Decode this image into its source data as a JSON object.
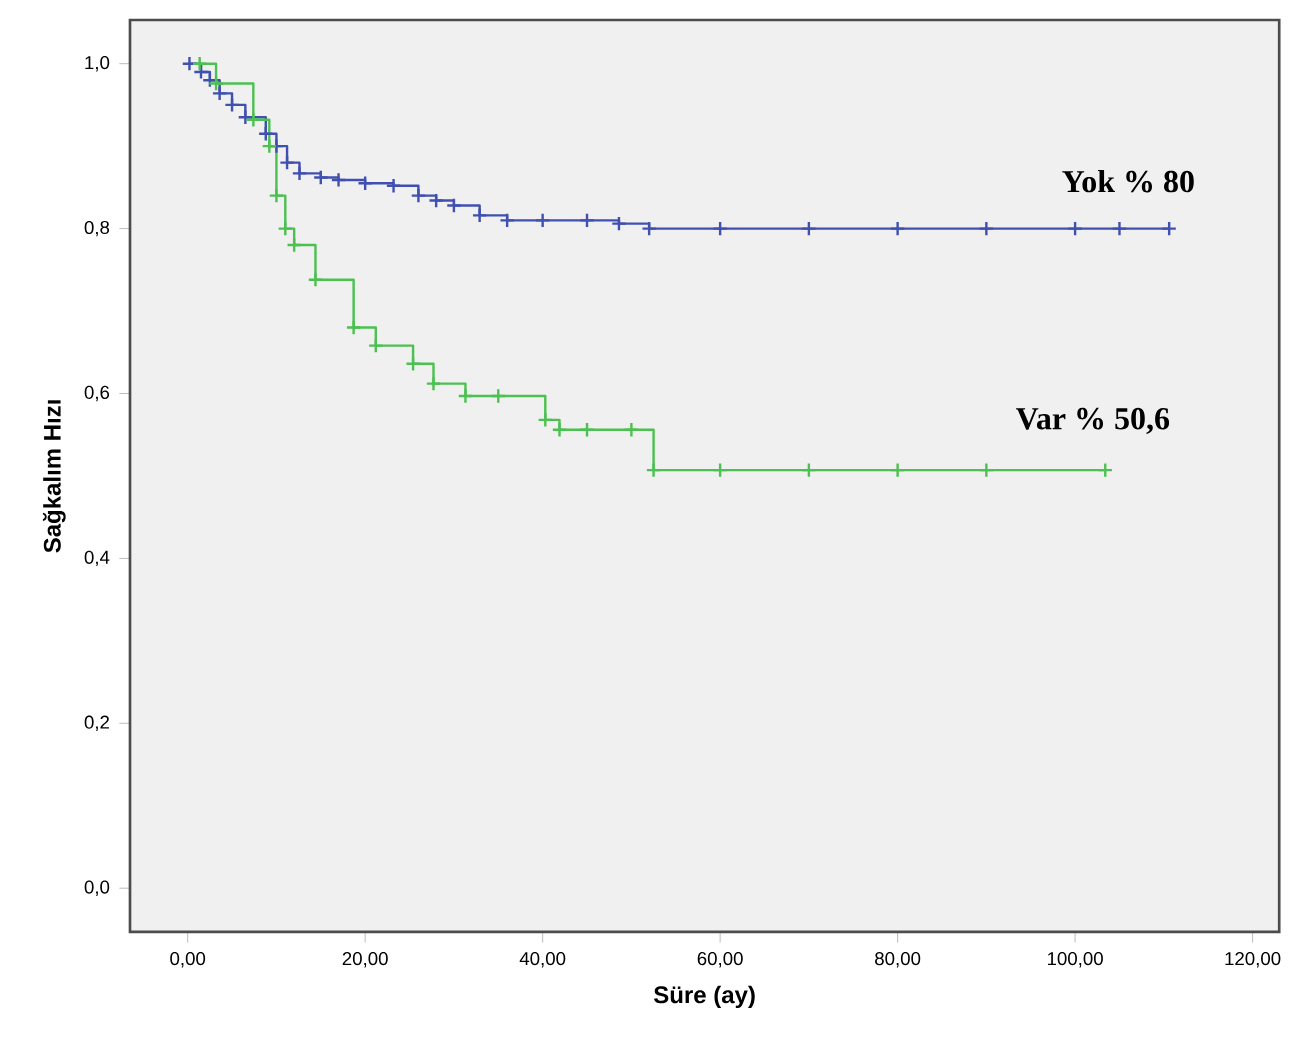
{
  "chart_data": {
    "type": "step",
    "xlabel": "Süre (ay)",
    "ylabel": "Sağkalım Hızı",
    "xlim": [
      -6.5,
      123
    ],
    "ylim": [
      -0.053,
      1.053
    ],
    "xticks": [
      {
        "value": 0,
        "label": "0,00"
      },
      {
        "value": 20,
        "label": "20,00"
      },
      {
        "value": 40,
        "label": "40,00"
      },
      {
        "value": 60,
        "label": "60,00"
      },
      {
        "value": 80,
        "label": "80,00"
      },
      {
        "value": 100,
        "label": "100,00"
      },
      {
        "value": 120,
        "label": "120,00"
      }
    ],
    "yticks": [
      {
        "value": 0,
        "label": "0,0"
      },
      {
        "value": 0.2,
        "label": "0,2"
      },
      {
        "value": 0.4,
        "label": "0,4"
      },
      {
        "value": 0.6,
        "label": "0,6"
      },
      {
        "value": 0.8,
        "label": "0,8"
      },
      {
        "value": 1,
        "label": "1,0"
      }
    ],
    "grid": false,
    "marker": "cross",
    "line_style": "solid",
    "series": [
      {
        "color": "#4050b0",
        "x": [
          0.2,
          1.5,
          2.5,
          3.6,
          5,
          6.5,
          8.8,
          10,
          11.2,
          12.6,
          15,
          17,
          20,
          23.2,
          26,
          28,
          30,
          32.9,
          36,
          40,
          45,
          48.6,
          52,
          60,
          70,
          80,
          90,
          100,
          105,
          110.6
        ],
        "values": [
          1.0,
          0.99,
          0.98,
          0.964,
          0.95,
          0.935,
          0.915,
          0.9,
          0.88,
          0.867,
          0.862,
          0.859,
          0.855,
          0.852,
          0.84,
          0.834,
          0.828,
          0.816,
          0.81,
          0.81,
          0.81,
          0.806,
          0.8,
          0.8,
          0.8,
          0.8,
          0.8,
          0.8,
          0.8,
          0.8
        ]
      },
      {
        "color": "#4cc050",
        "x": [
          1.35,
          3.2,
          7.4,
          9.2,
          10,
          11,
          12,
          14.4,
          18.7,
          21.2,
          25.4,
          27.7,
          31.3,
          35,
          40.3,
          41.9,
          45,
          50,
          52.5,
          60,
          70,
          80,
          90,
          103.4
        ],
        "values": [
          1.0,
          0.976,
          0.932,
          0.9,
          0.84,
          0.8,
          0.78,
          0.738,
          0.68,
          0.658,
          0.636,
          0.612,
          0.597,
          0.597,
          0.568,
          0.556,
          0.556,
          0.556,
          0.507,
          0.507,
          0.507,
          0.507,
          0.507,
          0.507
        ]
      }
    ],
    "annotations": [
      {
        "text": "Yok % 80",
        "x": 106,
        "y": 0.8
      },
      {
        "text": "Var % 50,6",
        "x": 102,
        "y": 0.507
      }
    ]
  }
}
